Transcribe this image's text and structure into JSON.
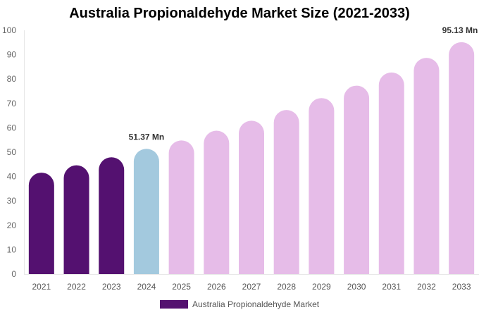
{
  "chart_data": {
    "type": "bar",
    "title": "Australia Propionaldehyde Market Size (2021-2033)",
    "categories": [
      "2021",
      "2022",
      "2023",
      "2024",
      "2025",
      "2026",
      "2027",
      "2028",
      "2029",
      "2030",
      "2031",
      "2032",
      "2033"
    ],
    "series": [
      {
        "name": "Australia Propionaldehyde Market",
        "values": [
          41.6,
          44.6,
          47.9,
          51.37,
          54.8,
          58.8,
          62.9,
          67.3,
          72.2,
          77.3,
          82.7,
          88.7,
          95.13
        ]
      }
    ],
    "data_labels": [
      {
        "category": "2024",
        "text": "51.37 Mn"
      },
      {
        "category": "2033",
        "text": "95.13 Mn"
      }
    ],
    "ylim": [
      0,
      100
    ],
    "yticks": [
      0,
      10,
      20,
      30,
      40,
      50,
      60,
      70,
      80,
      90,
      100
    ],
    "grid": false,
    "legend": "bottom",
    "colors": {
      "historical": "#541170",
      "base_year": "#a3c9de",
      "forecast": "#e6bce8"
    },
    "bar_color_groups": [
      "historical",
      "historical",
      "historical",
      "base_year",
      "forecast",
      "forecast",
      "forecast",
      "forecast",
      "forecast",
      "forecast",
      "forecast",
      "forecast",
      "forecast"
    ]
  }
}
